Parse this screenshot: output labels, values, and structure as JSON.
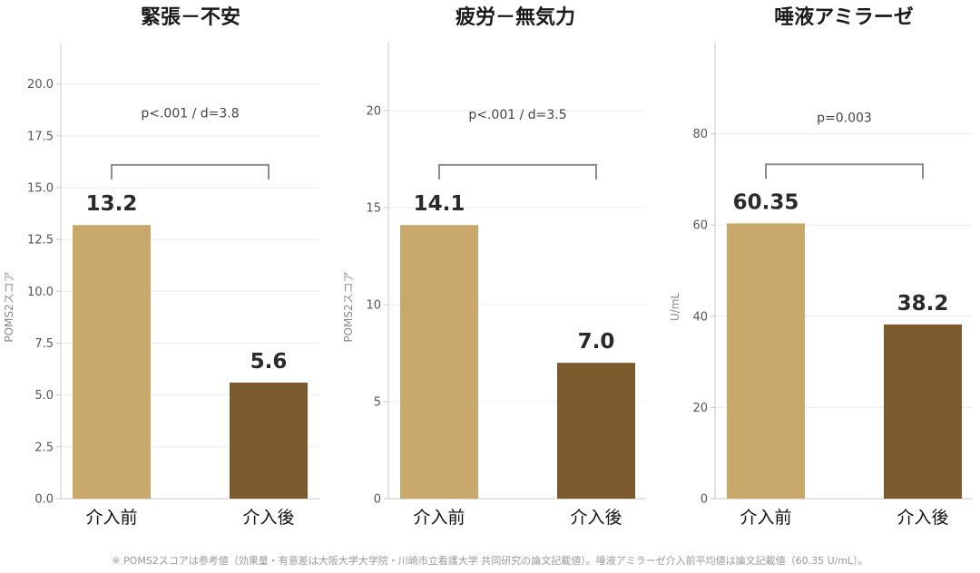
{
  "colors": {
    "before": "#c8a86b",
    "after": "#7b5a2e",
    "bracket": "#8c8c8c",
    "grid": "#ececec",
    "axis": "#c8c8c8"
  },
  "chart_data": [
    {
      "type": "bar",
      "title": "緊張－不安",
      "ylabel": "POMS2スコア",
      "categories": [
        "介入前",
        "介入後"
      ],
      "values": [
        13.2,
        5.6
      ],
      "value_labels": [
        "13.2",
        "5.6"
      ],
      "ylim": [
        0,
        22
      ],
      "yticks": [
        0,
        2.5,
        5,
        7.5,
        10,
        12.5,
        15,
        17.5,
        20
      ],
      "ytick_labels": [
        "0.0",
        "2.5",
        "5.0",
        "7.5",
        "10.0",
        "12.5",
        "15.0",
        "17.5",
        "20.0"
      ],
      "bracket_level": 16.1,
      "stat_level": 18.6,
      "stat_text": "p<.001  /  d=3.8",
      "grid": true
    },
    {
      "type": "bar",
      "title": "疲労－無気力",
      "ylabel": "POMS2スコア",
      "categories": [
        "介入前",
        "介入後"
      ],
      "values": [
        14.1,
        7.0
      ],
      "value_labels": [
        "14.1",
        "7.0"
      ],
      "ylim": [
        0,
        23.5
      ],
      "yticks": [
        0,
        5,
        10,
        15,
        20
      ],
      "ytick_labels": [
        "0",
        "5",
        "10",
        "15",
        "20"
      ],
      "bracket_level": 17.2,
      "stat_level": 19.8,
      "stat_text": "p<.001  /  d=3.5",
      "grid": true
    },
    {
      "type": "bar",
      "title": "唾液アミラーゼ",
      "ylabel": "U/mL",
      "categories": [
        "介入前",
        "介入後"
      ],
      "values": [
        60.35,
        38.2
      ],
      "value_labels": [
        "60.35",
        "38.2"
      ],
      "ylim": [
        0,
        100
      ],
      "yticks": [
        0,
        20,
        40,
        60,
        80
      ],
      "ytick_labels": [
        "0",
        "20",
        "40",
        "60",
        "80"
      ],
      "bracket_level": 73.3,
      "stat_level": 83.6,
      "stat_text": "p=0.003",
      "grid": true
    }
  ],
  "footnote": "※ POMS2スコアは参考値（効果量・有意差は大阪大学大学院・川崎市立看護大学 共同研究の論文記載値）。唾液アミラーゼ介入前平均値は論文記載値（60.35 U/mL）。"
}
